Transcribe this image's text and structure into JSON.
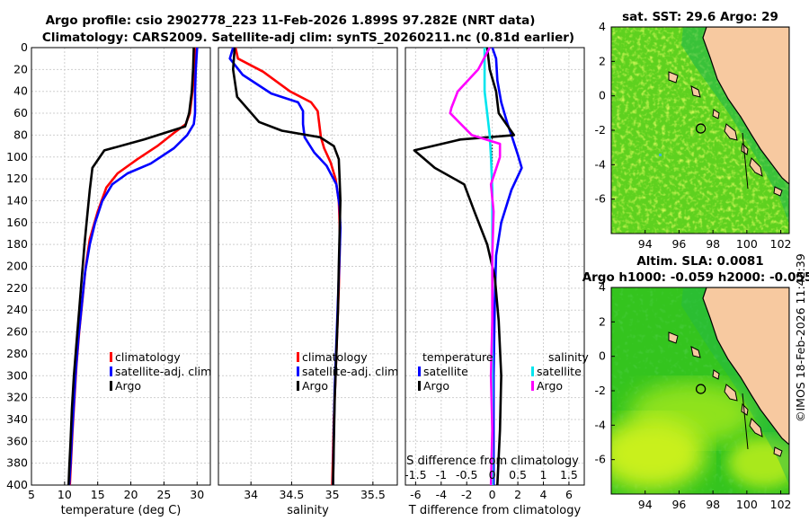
{
  "title_line1": "Argo profile: csio 2902778_223 11-Feb-2026 1.899S 97.282E (NRT data)",
  "title_line2": "Climatology: CARS2009. Satellite-adj clim: synTS_20260211.nc (0.81d earlier)",
  "watermark": "©IMOS 18-Feb-2026 11:42:39",
  "colors": {
    "climatology": "#ff0000",
    "satellite": "#0000ff",
    "argo": "#000000",
    "sat_salinity": "#00e5ee",
    "argo_salinity": "#ff00ff",
    "land": "#f7c9a0",
    "coast": "#000000"
  },
  "depth_ticks": [
    0,
    20,
    40,
    60,
    80,
    100,
    120,
    140,
    160,
    180,
    200,
    220,
    240,
    260,
    280,
    300,
    320,
    340,
    360,
    380,
    400
  ],
  "chart_data": [
    {
      "type": "line",
      "name": "temperature",
      "xlabel": "temperature (deg C)",
      "xlim": [
        5,
        32
      ],
      "ylim": [
        0,
        400
      ],
      "xticks": [
        5,
        10,
        15,
        20,
        25,
        30
      ],
      "legend": [
        "climatology",
        "satellite-adj. clim",
        "Argo"
      ],
      "series": [
        {
          "name": "climatology",
          "color": "#ff0000",
          "points": [
            [
              29.8,
              0
            ],
            [
              29.6,
              20
            ],
            [
              29.3,
              40
            ],
            [
              28.9,
              60
            ],
            [
              28.3,
              70
            ],
            [
              26.5,
              78
            ],
            [
              24,
              90
            ],
            [
              21,
              102
            ],
            [
              18,
              115
            ],
            [
              16.3,
              128
            ],
            [
              15,
              150
            ],
            [
              13.8,
              175
            ],
            [
              13.2,
              200
            ],
            [
              12.7,
              230
            ],
            [
              12.2,
              260
            ],
            [
              11.8,
              290
            ],
            [
              11.5,
              320
            ],
            [
              11.2,
              350
            ],
            [
              11,
              375
            ],
            [
              10.8,
              400
            ]
          ]
        },
        {
          "name": "satellite-adj. clim",
          "color": "#0000ff",
          "points": [
            [
              30,
              0
            ],
            [
              29.8,
              20
            ],
            [
              29.7,
              40
            ],
            [
              29.7,
              60
            ],
            [
              29.5,
              70
            ],
            [
              28.5,
              80
            ],
            [
              26.5,
              92
            ],
            [
              23,
              106
            ],
            [
              19.5,
              115
            ],
            [
              17.2,
              125
            ],
            [
              15.7,
              140
            ],
            [
              14.6,
              160
            ],
            [
              13.8,
              180
            ],
            [
              13.1,
              205
            ],
            [
              12.6,
              235
            ],
            [
              12.1,
              265
            ],
            [
              11.7,
              295
            ],
            [
              11.4,
              325
            ],
            [
              11.1,
              355
            ],
            [
              10.9,
              380
            ],
            [
              10.7,
              400
            ]
          ]
        },
        {
          "name": "Argo",
          "color": "#000000",
          "points": [
            [
              29.5,
              0
            ],
            [
              29.4,
              20
            ],
            [
              29.2,
              40
            ],
            [
              28.8,
              60
            ],
            [
              28.2,
              72
            ],
            [
              22,
              84
            ],
            [
              16,
              94
            ],
            [
              14.2,
              110
            ],
            [
              13.8,
              130
            ],
            [
              13.4,
              155
            ],
            [
              13,
              180
            ],
            [
              12.6,
              210
            ],
            [
              12.2,
              240
            ],
            [
              11.8,
              270
            ],
            [
              11.4,
              300
            ],
            [
              11.1,
              330
            ],
            [
              10.9,
              360
            ],
            [
              10.7,
              385
            ],
            [
              10.6,
              400
            ]
          ]
        }
      ]
    },
    {
      "type": "line",
      "name": "salinity",
      "xlabel": "salinity",
      "xlim": [
        33.6,
        35.8
      ],
      "ylim": [
        0,
        400
      ],
      "xticks": [
        34,
        34.5,
        35,
        35.5
      ],
      "legend": [
        "climatology",
        "satellite-adj. clim",
        "Argo"
      ],
      "series": [
        {
          "name": "climatology",
          "color": "#ff0000",
          "points": [
            [
              33.81,
              0
            ],
            [
              33.84,
              10
            ],
            [
              34.15,
              22
            ],
            [
              34.48,
              40
            ],
            [
              34.74,
              50
            ],
            [
              34.82,
              58
            ],
            [
              34.84,
              70
            ],
            [
              34.86,
              82
            ],
            [
              34.9,
              92
            ],
            [
              34.98,
              105
            ],
            [
              35.04,
              120
            ],
            [
              35.08,
              140
            ],
            [
              35.09,
              160
            ],
            [
              35.09,
              190
            ],
            [
              35.08,
              220
            ],
            [
              35.06,
              260
            ],
            [
              35.04,
              300
            ],
            [
              35.02,
              340
            ],
            [
              35.01,
              370
            ],
            [
              35,
              400
            ]
          ]
        },
        {
          "name": "satellite-adj. clim",
          "color": "#0000ff",
          "points": [
            [
              33.78,
              0
            ],
            [
              33.74,
              10
            ],
            [
              33.9,
              25
            ],
            [
              34.25,
              42
            ],
            [
              34.58,
              50
            ],
            [
              34.64,
              58
            ],
            [
              34.64,
              70
            ],
            [
              34.66,
              82
            ],
            [
              34.78,
              96
            ],
            [
              34.93,
              108
            ],
            [
              35.05,
              125
            ],
            [
              35.09,
              145
            ],
            [
              35.1,
              165
            ],
            [
              35.09,
              190
            ],
            [
              35.07,
              230
            ],
            [
              35.05,
              270
            ],
            [
              35.03,
              310
            ],
            [
              35.02,
              350
            ],
            [
              35.01,
              400
            ]
          ]
        },
        {
          "name": "Argo",
          "color": "#000000",
          "points": [
            [
              33.8,
              0
            ],
            [
              33.78,
              20
            ],
            [
              33.83,
              45
            ],
            [
              34.1,
              68
            ],
            [
              34.38,
              76
            ],
            [
              34.85,
              82
            ],
            [
              35.02,
              90
            ],
            [
              35.08,
              102
            ],
            [
              35.09,
              120
            ],
            [
              35.1,
              140
            ],
            [
              35.09,
              170
            ],
            [
              35.08,
              200
            ],
            [
              35.07,
              240
            ],
            [
              35.05,
              280
            ],
            [
              35.03,
              320
            ],
            [
              35.02,
              360
            ],
            [
              35.01,
              400
            ]
          ]
        }
      ]
    },
    {
      "type": "line",
      "name": "difference",
      "xlabel": "T difference from climatology",
      "xlabel_top": "S difference from climatology",
      "xlim": [
        -6.8,
        7.2
      ],
      "ylim": [
        0,
        400
      ],
      "xticks": [
        -6,
        -4,
        -2,
        0,
        2,
        4,
        6
      ],
      "s_ticks": [
        "-1.5",
        "-1",
        "-0.5",
        "0",
        "0.5",
        "1",
        "1.5"
      ],
      "legend_headers": [
        "temperature",
        "salinity"
      ],
      "legend": [
        "satellite",
        "Argo",
        "satellite",
        "Argo"
      ],
      "series": [
        {
          "name": "temperature satellite",
          "color": "#0000ff",
          "points": [
            [
              0,
              0
            ],
            [
              0.3,
              10
            ],
            [
              0.4,
              30
            ],
            [
              0.7,
              50
            ],
            [
              1.2,
              70
            ],
            [
              1.5,
              80
            ],
            [
              2,
              98
            ],
            [
              2.3,
              110
            ],
            [
              1.5,
              130
            ],
            [
              0.7,
              160
            ],
            [
              0.3,
              190
            ],
            [
              0.2,
              230
            ],
            [
              0.1,
              300
            ],
            [
              0.1,
              400
            ]
          ]
        },
        {
          "name": "temperature Argo",
          "color": "#000000",
          "points": [
            [
              -0.4,
              0
            ],
            [
              -0.2,
              20
            ],
            [
              0.3,
              40
            ],
            [
              0.5,
              60
            ],
            [
              1.7,
              80
            ],
            [
              -2.5,
              84
            ],
            [
              -6.1,
              94
            ],
            [
              -4.5,
              110
            ],
            [
              -2.2,
              125
            ],
            [
              -1.4,
              150
            ],
            [
              -0.4,
              180
            ],
            [
              0.2,
              210
            ],
            [
              0.5,
              250
            ],
            [
              0.7,
              300
            ],
            [
              0.6,
              350
            ],
            [
              0.4,
              400
            ]
          ]
        },
        {
          "name": "salinity satellite",
          "color": "#00e5ee",
          "points": [
            [
              -0.6,
              0
            ],
            [
              -0.6,
              20
            ],
            [
              -0.6,
              40
            ],
            [
              -0.4,
              60
            ],
            [
              -0.2,
              80
            ],
            [
              -0.1,
              100
            ],
            [
              0,
              130
            ],
            [
              0,
              160
            ],
            [
              0,
              400
            ]
          ]
        },
        {
          "name": "salinity Argo",
          "color": "#ff00ff",
          "points": [
            [
              -0.2,
              0
            ],
            [
              -1.1,
              20
            ],
            [
              -2.7,
              40
            ],
            [
              -3.2,
              55
            ],
            [
              -3.3,
              60
            ],
            [
              -1.6,
              80
            ],
            [
              0.6,
              88
            ],
            [
              0.6,
              100
            ],
            [
              -0.1,
              125
            ],
            [
              0.1,
              150
            ],
            [
              0,
              190
            ],
            [
              0,
              250
            ],
            [
              -0.1,
              300
            ],
            [
              0,
              350
            ],
            [
              -0.1,
              400
            ]
          ]
        }
      ]
    },
    {
      "type": "heatmap",
      "name": "sst-map",
      "title": "sat. SST: 29.6 Argo: 29",
      "xlim": [
        92,
        102.5
      ],
      "ylim": [
        -8,
        4
      ],
      "xticks": [
        94,
        96,
        98,
        100,
        102
      ],
      "yticks": [
        4,
        2,
        0,
        -2,
        -4,
        -6
      ],
      "marker": [
        97.282,
        -1.899
      ]
    },
    {
      "type": "heatmap",
      "name": "sla-map",
      "title": "Altim. SLA: 0.0081",
      "subtitle": "Argo h1000: -0.059 h2000: -0.055",
      "xlim": [
        92,
        102.5
      ],
      "ylim": [
        -8,
        4
      ],
      "xticks": [
        94,
        96,
        98,
        100,
        102
      ],
      "yticks": [
        4,
        2,
        0,
        -2,
        -4,
        -6
      ],
      "marker": [
        97.282,
        -1.899
      ]
    }
  ]
}
